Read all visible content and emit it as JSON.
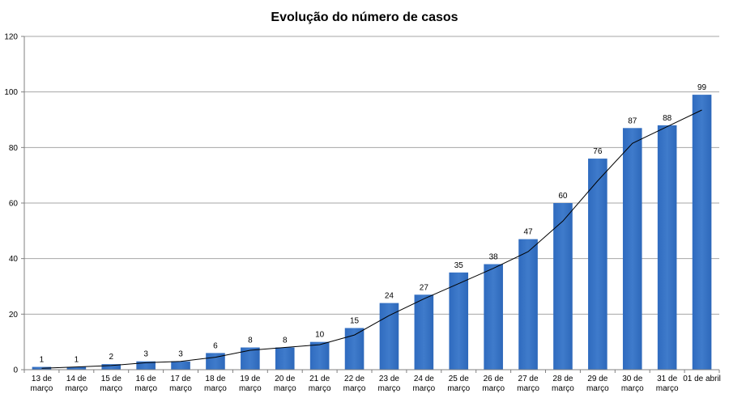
{
  "chart_data": {
    "type": "bar",
    "title": "Evolução do número de casos",
    "xlabel": "",
    "ylabel": "",
    "ylim": [
      0,
      120
    ],
    "yticks": [
      0,
      20,
      40,
      60,
      80,
      100,
      120
    ],
    "grid": true,
    "legend": "none",
    "bar_color": "#3f7bcb",
    "trendline_color": "#000000",
    "categories": [
      [
        "13 de",
        "março"
      ],
      [
        "14 de",
        "março"
      ],
      [
        "15 de",
        "março"
      ],
      [
        "16 de",
        "março"
      ],
      [
        "17 de",
        "março"
      ],
      [
        "18 de",
        "março"
      ],
      [
        "19 de",
        "março"
      ],
      [
        "20 de",
        "março"
      ],
      [
        "21 de",
        "março"
      ],
      [
        "22 de",
        "março"
      ],
      [
        "23 de",
        "março"
      ],
      [
        "24 de",
        "março"
      ],
      [
        "25 de",
        "março"
      ],
      [
        "26 de",
        "março"
      ],
      [
        "27 de",
        "março"
      ],
      [
        "28 de",
        "março"
      ],
      [
        "29 de",
        "março"
      ],
      [
        "30 de",
        "março"
      ],
      [
        "31 de",
        "março"
      ],
      [
        "01 de abril"
      ]
    ],
    "values": [
      1,
      1,
      2,
      3,
      3,
      6,
      8,
      8,
      10,
      15,
      24,
      27,
      35,
      38,
      47,
      60,
      76,
      87,
      88,
      99
    ],
    "trendline": [
      0.5,
      1,
      1.5,
      2.5,
      3,
      4.5,
      7,
      8,
      9,
      12.5,
      19.5,
      25.5,
      31,
      36.5,
      42.5,
      53.5,
      68,
      81.5,
      87.5,
      93.5
    ]
  }
}
